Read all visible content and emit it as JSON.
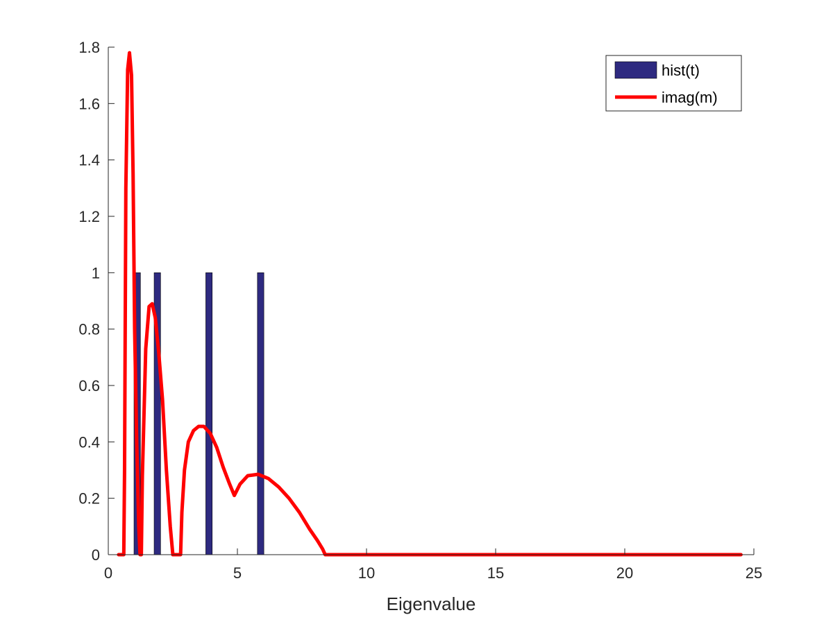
{
  "chart_data": {
    "type": "bar",
    "title": "",
    "xlabel": "Eigenvalue",
    "ylabel": "",
    "xlim": [
      0,
      25
    ],
    "ylim": [
      0,
      1.8
    ],
    "xticks": [
      "0",
      "5",
      "10",
      "15",
      "20",
      "25"
    ],
    "yticks": [
      "0",
      "0.2",
      "0.4",
      "0.6",
      "0.8",
      "1",
      "1.2",
      "1.4",
      "1.6",
      "1.8"
    ],
    "grid": false,
    "legend_position": "top-right",
    "series": [
      {
        "name": "hist(t)",
        "type": "bar",
        "color": "#2e2a80",
        "bar_width": 0.25,
        "x": [
          1.12,
          1.9,
          3.9,
          5.9
        ],
        "values": [
          1,
          1,
          1,
          1
        ]
      },
      {
        "name": "imag(m)",
        "type": "line",
        "color": "#ff0000",
        "x": [
          0.4,
          0.6,
          0.63,
          0.68,
          0.75,
          0.82,
          0.9,
          0.96,
          1.02,
          1.1,
          1.18,
          1.23,
          1.28,
          1.32,
          1.45,
          1.58,
          1.7,
          1.82,
          1.95,
          2.1,
          2.25,
          2.4,
          2.5,
          2.58,
          2.8,
          2.85,
          2.95,
          3.1,
          3.3,
          3.5,
          3.7,
          3.95,
          4.2,
          4.45,
          4.7,
          4.88,
          5.1,
          5.4,
          5.8,
          6.2,
          6.6,
          7.0,
          7.4,
          7.8,
          8.1,
          8.3,
          8.4,
          10,
          15,
          20,
          24.5
        ],
        "values": [
          0,
          0,
          0.3,
          1.3,
          1.72,
          1.78,
          1.7,
          1.35,
          0.8,
          0.4,
          0.1,
          0,
          0,
          0.28,
          0.73,
          0.88,
          0.89,
          0.84,
          0.72,
          0.55,
          0.3,
          0.1,
          0,
          0,
          0,
          0.15,
          0.3,
          0.4,
          0.44,
          0.455,
          0.455,
          0.43,
          0.38,
          0.31,
          0.25,
          0.21,
          0.25,
          0.28,
          0.285,
          0.27,
          0.24,
          0.2,
          0.15,
          0.09,
          0.05,
          0.02,
          0,
          0,
          0,
          0,
          0
        ]
      }
    ]
  }
}
